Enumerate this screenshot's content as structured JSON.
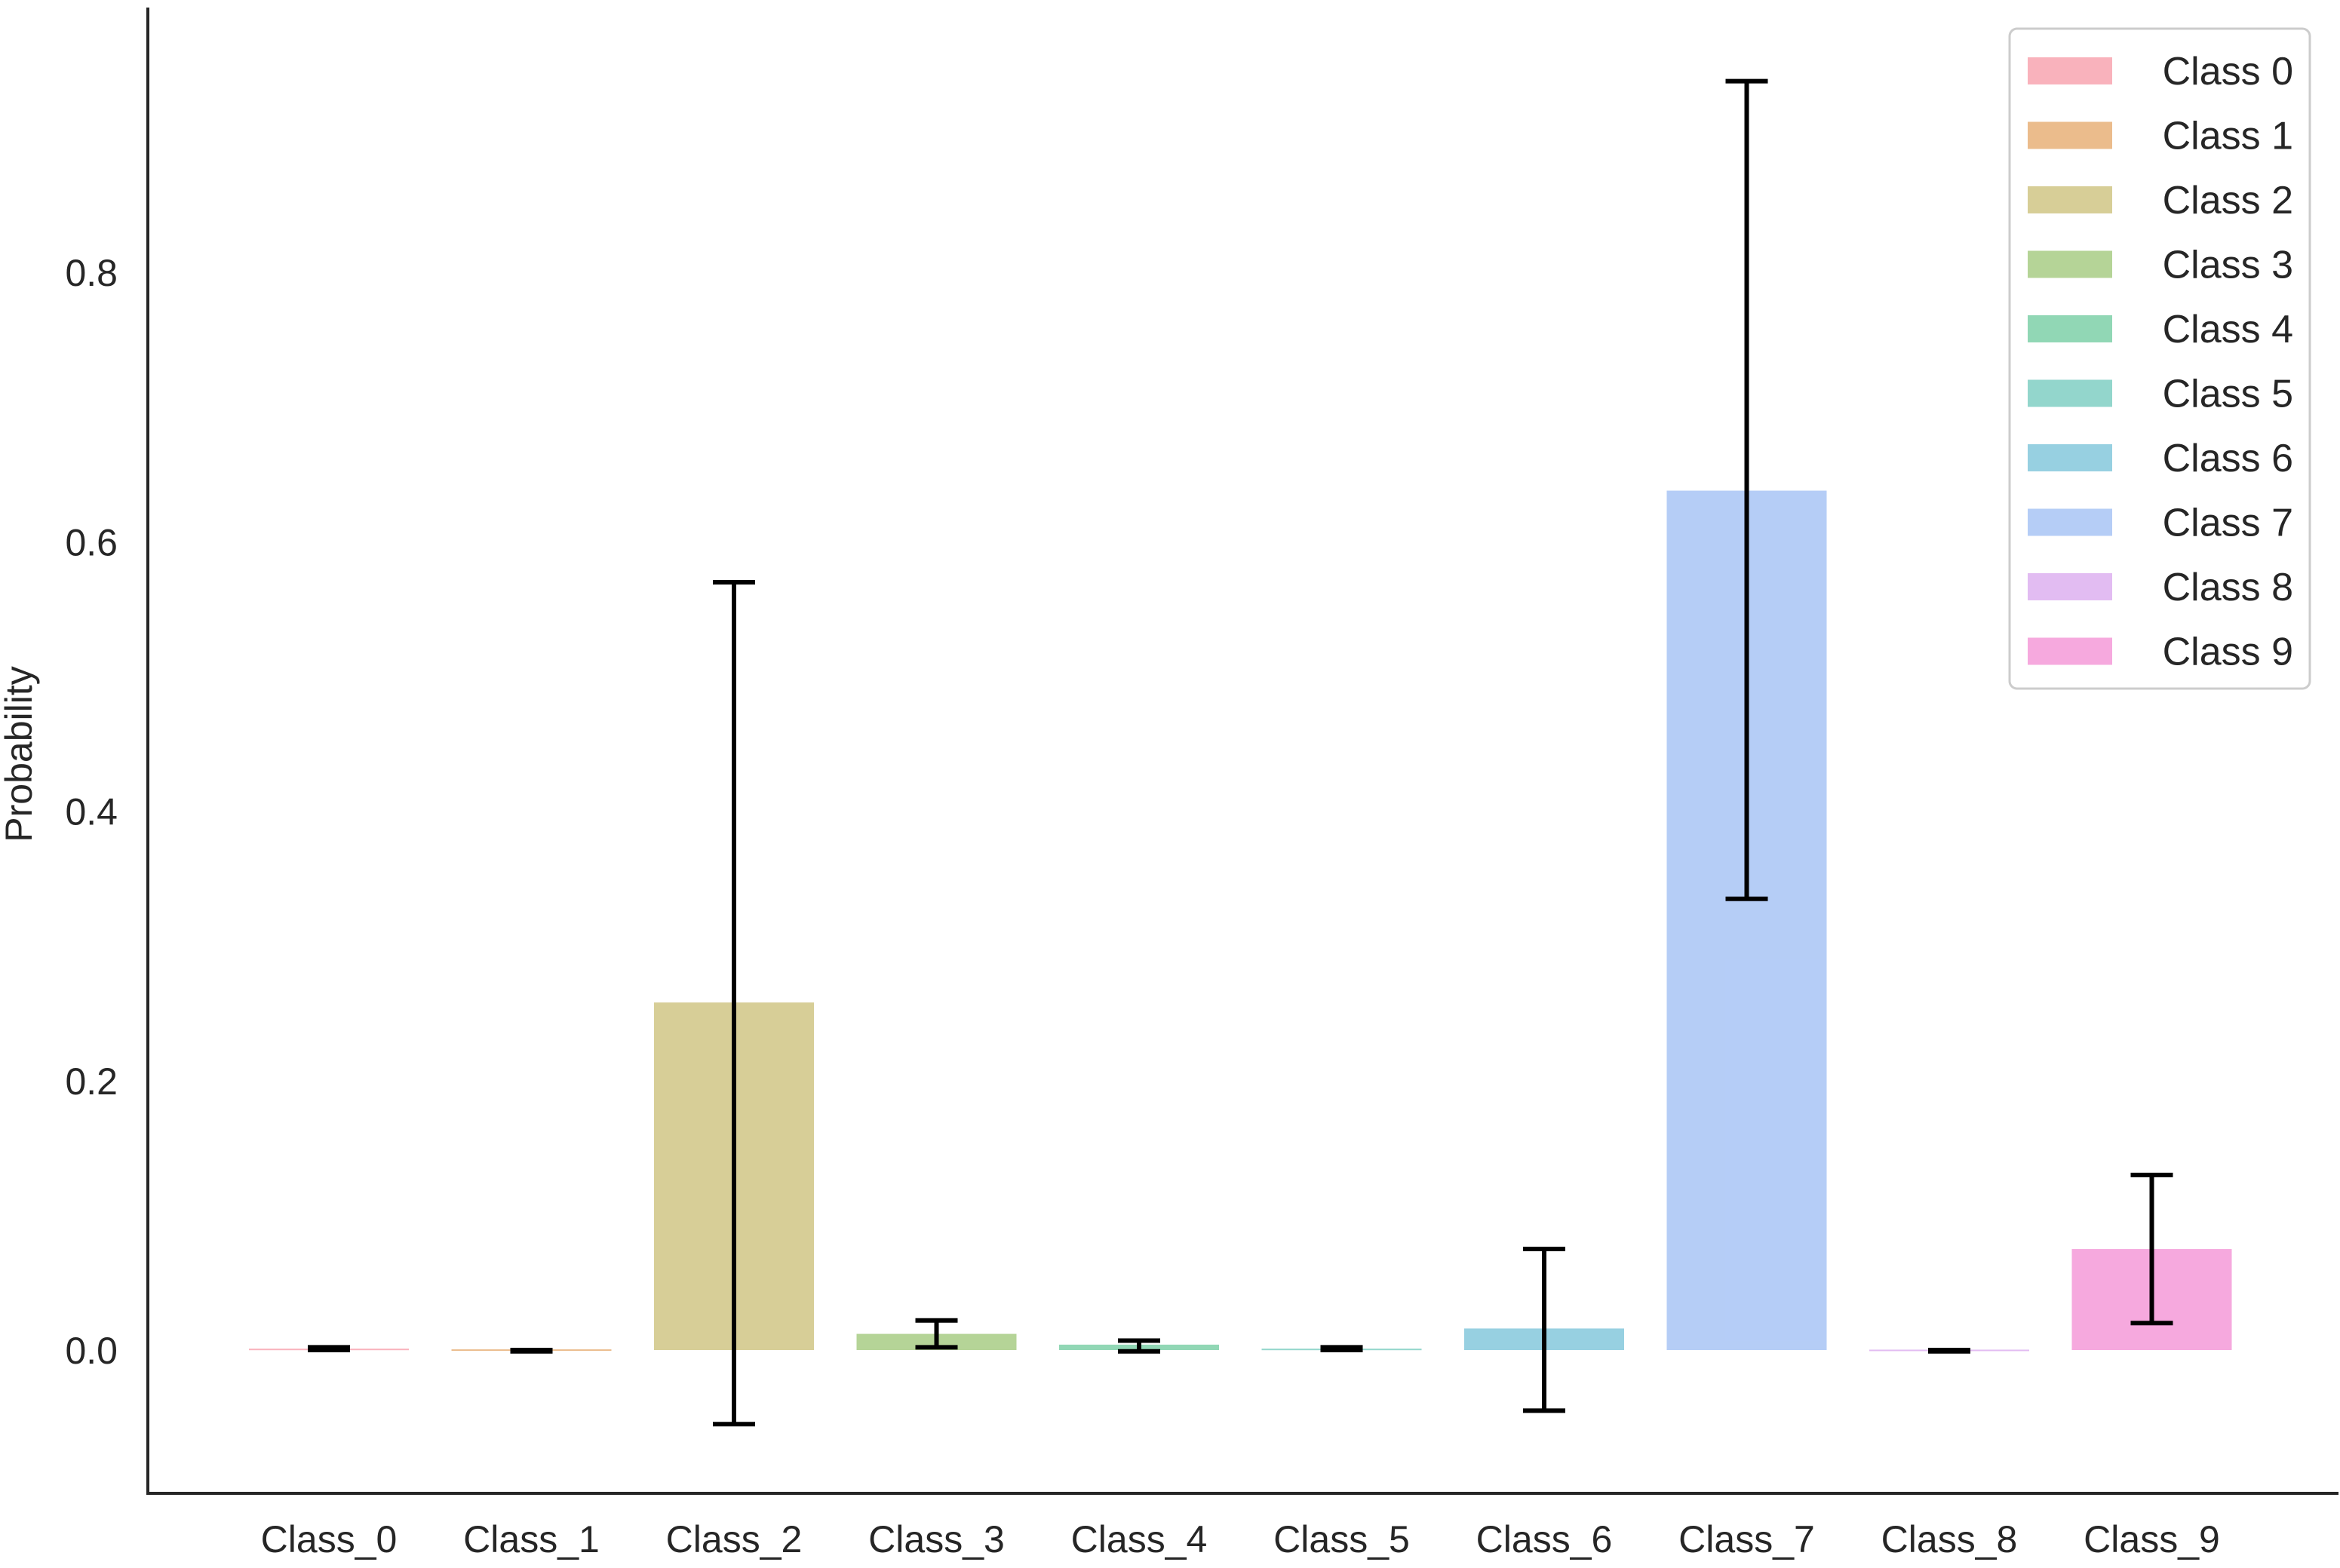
{
  "chart_data": {
    "type": "bar",
    "title": "",
    "xlabel": "",
    "ylabel": "Probability",
    "ylim": [
      -0.1,
      1.0
    ],
    "yticks": [
      "0.0",
      "0.2",
      "0.4",
      "0.6",
      "0.8"
    ],
    "categories": [
      "Class_0",
      "Class_1",
      "Class_2",
      "Class_3",
      "Class_4",
      "Class_5",
      "Class_6",
      "Class_7",
      "Class_8",
      "Class_9"
    ],
    "values": [
      0.001,
      0.0005,
      0.258,
      0.012,
      0.004,
      0.001,
      0.016,
      0.638,
      0.0003,
      0.075
    ],
    "error_low": [
      0.0,
      -0.001,
      -0.055,
      0.002,
      -0.001,
      0.0,
      -0.045,
      0.335,
      -0.001,
      0.02
    ],
    "error_high": [
      0.002,
      0.0,
      0.57,
      0.022,
      0.007,
      0.002,
      0.075,
      0.942,
      0.0,
      0.13
    ],
    "colors": [
      "#f8a5b0",
      "#e8b078",
      "#d0c585",
      "#a8cc85",
      "#7ed0a8",
      "#80cfc3",
      "#85c8dc",
      "#a8c4f5",
      "#ddb0f0",
      "#f59ad8"
    ],
    "legend": {
      "position": "top-right",
      "entries": [
        "Class 0",
        "Class 1",
        "Class 2",
        "Class 3",
        "Class 4",
        "Class 5",
        "Class 6",
        "Class 7",
        "Class 8",
        "Class 9"
      ]
    },
    "grid": false
  }
}
